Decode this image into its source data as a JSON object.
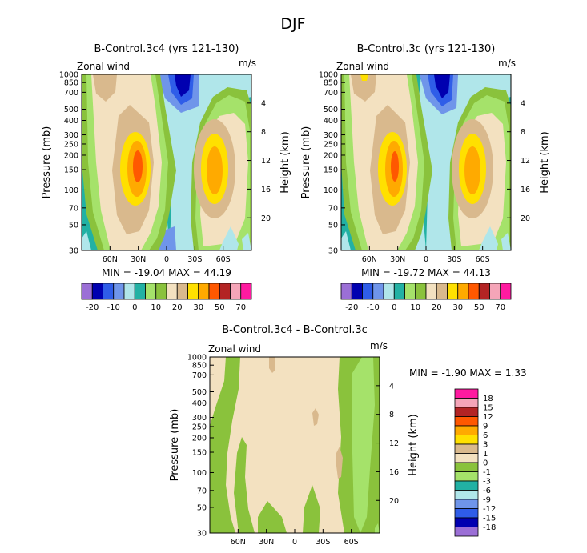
{
  "figure_title": "DJF",
  "palette_main": {
    "colors": [
      "#9b6fd6",
      "#0000b0",
      "#2f5de8",
      "#6f95ea",
      "#b0e6ea",
      "#22b1a4",
      "#a5e26a",
      "#8ac23c",
      "#f3e1c0",
      "#d9b98d",
      "#ffe000",
      "#ffaa00",
      "#ff5800",
      "#b32424",
      "#f5a5b8",
      "#ff1aa0"
    ],
    "labels": [
      "-20",
      "-10",
      "0",
      "10",
      "20",
      "30",
      "50",
      "70"
    ]
  },
  "palette_diff": {
    "colors": [
      "#9b6fd6",
      "#0000b0",
      "#2f5de8",
      "#6f95ea",
      "#b0e6ea",
      "#22b1a4",
      "#a5e26a",
      "#8ac23c",
      "#f3e1c0",
      "#d9b98d",
      "#ffe000",
      "#ffaa00",
      "#ff5800",
      "#b32424",
      "#f5a5b8",
      "#ff1aa0"
    ],
    "labels": [
      "-18",
      "-15",
      "-12",
      "-9",
      "-6",
      "-3",
      "-1",
      "0",
      "1",
      "3",
      "6",
      "9",
      "12",
      "15",
      "18"
    ]
  },
  "chart_data": [
    {
      "type": "heatmap",
      "title": "B-Control.3c4 (yrs 121-130)",
      "subtitle_left": "Zonal wind",
      "subtitle_right": "m/s",
      "ylabel": "Pressure (mb)",
      "ylabel_right": "Height (km)",
      "y_ticks": [
        "30",
        "50",
        "70",
        "100",
        "150",
        "200",
        "250",
        "300",
        "400",
        "500",
        "700",
        "850",
        "1000"
      ],
      "y_right_ticks": [
        "20",
        "16",
        "12",
        "8",
        "4"
      ],
      "x_ticks": [
        "60N",
        "30N",
        "0",
        "30S",
        "60S"
      ],
      "min_max_text": "MIN = -19.04   MAX =  44.19",
      "xlim": [
        90,
        -90
      ],
      "ylim_mb": [
        1000,
        30
      ]
    },
    {
      "type": "heatmap",
      "title": "B-Control.3c (yrs 121-130)",
      "subtitle_left": "Zonal wind",
      "subtitle_right": "m/s",
      "ylabel": "Pressure (mb)",
      "ylabel_right": "Height (km)",
      "y_ticks": [
        "30",
        "50",
        "70",
        "100",
        "150",
        "200",
        "250",
        "300",
        "400",
        "500",
        "700",
        "850",
        "1000"
      ],
      "y_right_ticks": [
        "20",
        "16",
        "12",
        "8",
        "4"
      ],
      "x_ticks": [
        "60N",
        "30N",
        "0",
        "30S",
        "60S"
      ],
      "min_max_text": "MIN = -19.72   MAX =  44.13",
      "xlim": [
        90,
        -90
      ],
      "ylim_mb": [
        1000,
        30
      ]
    },
    {
      "type": "heatmap",
      "title": "B-Control.3c4 - B-Control.3c",
      "subtitle_left": "Zonal wind",
      "subtitle_right": "m/s",
      "ylabel": "Pressure (mb)",
      "ylabel_right": "Height (km)",
      "y_ticks": [
        "30",
        "50",
        "70",
        "100",
        "150",
        "200",
        "250",
        "300",
        "400",
        "500",
        "700",
        "850",
        "1000"
      ],
      "y_right_ticks": [
        "20",
        "16",
        "12",
        "8",
        "4"
      ],
      "x_ticks": [
        "60N",
        "30N",
        "0",
        "30S",
        "60S"
      ],
      "min_max_text": "MIN =  -1.90   MAX =   1.33",
      "xlim": [
        90,
        -90
      ],
      "ylim_mb": [
        1000,
        30
      ]
    }
  ]
}
